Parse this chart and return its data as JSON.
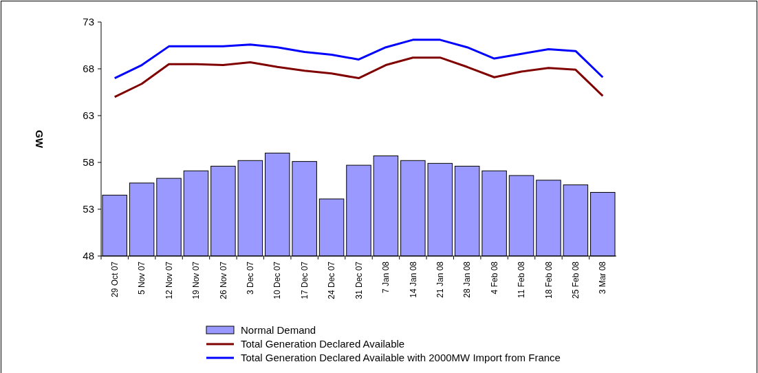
{
  "chart_data": {
    "type": "bar",
    "ylabel": "GW",
    "categories": [
      "29 Oct 07",
      "5 Nov 07",
      "12 Nov 07",
      "19 Nov 07",
      "26 Nov 07",
      "3 Dec 07",
      "10 Dec 07",
      "17 Dec 07",
      "24 Dec 07",
      "31 Dec 07",
      "7 Jan 08",
      "14 Jan 08",
      "21 Jan 08",
      "28 Jan 08",
      "4 Feb 08",
      "11 Feb 08",
      "18 Feb 08",
      "25 Feb 08",
      "3 Mar 08"
    ],
    "series": [
      {
        "name": "Normal Demand",
        "color": "#9999ff",
        "values": [
          54.5,
          55.8,
          56.3,
          57.1,
          57.6,
          58.2,
          59.0,
          58.1,
          54.1,
          57.7,
          58.7,
          58.2,
          57.9,
          57.6,
          57.1,
          56.6,
          56.1,
          55.6,
          54.8
        ]
      },
      {
        "name": "Total Generation Declared Available",
        "type": "line",
        "color": "#800000",
        "values": [
          65.0,
          66.4,
          68.5,
          68.5,
          68.4,
          68.7,
          68.2,
          67.8,
          67.5,
          67.0,
          68.4,
          69.2,
          69.2,
          68.2,
          67.1,
          67.7,
          68.1,
          67.9,
          65.1
        ]
      },
      {
        "name": "Total Generation Declared Available with 2000MW Import from France",
        "type": "line",
        "color": "#0000ff",
        "values": [
          67.0,
          68.4,
          70.4,
          70.4,
          70.4,
          70.6,
          70.3,
          69.8,
          69.5,
          69.0,
          70.3,
          71.1,
          71.1,
          70.3,
          69.1,
          69.6,
          70.1,
          69.9,
          67.1
        ]
      }
    ],
    "ylim": [
      48,
      73
    ],
    "yticks": [
      48,
      53,
      58,
      63,
      68,
      73
    ],
    "grid": false,
    "legend": "bottom"
  }
}
